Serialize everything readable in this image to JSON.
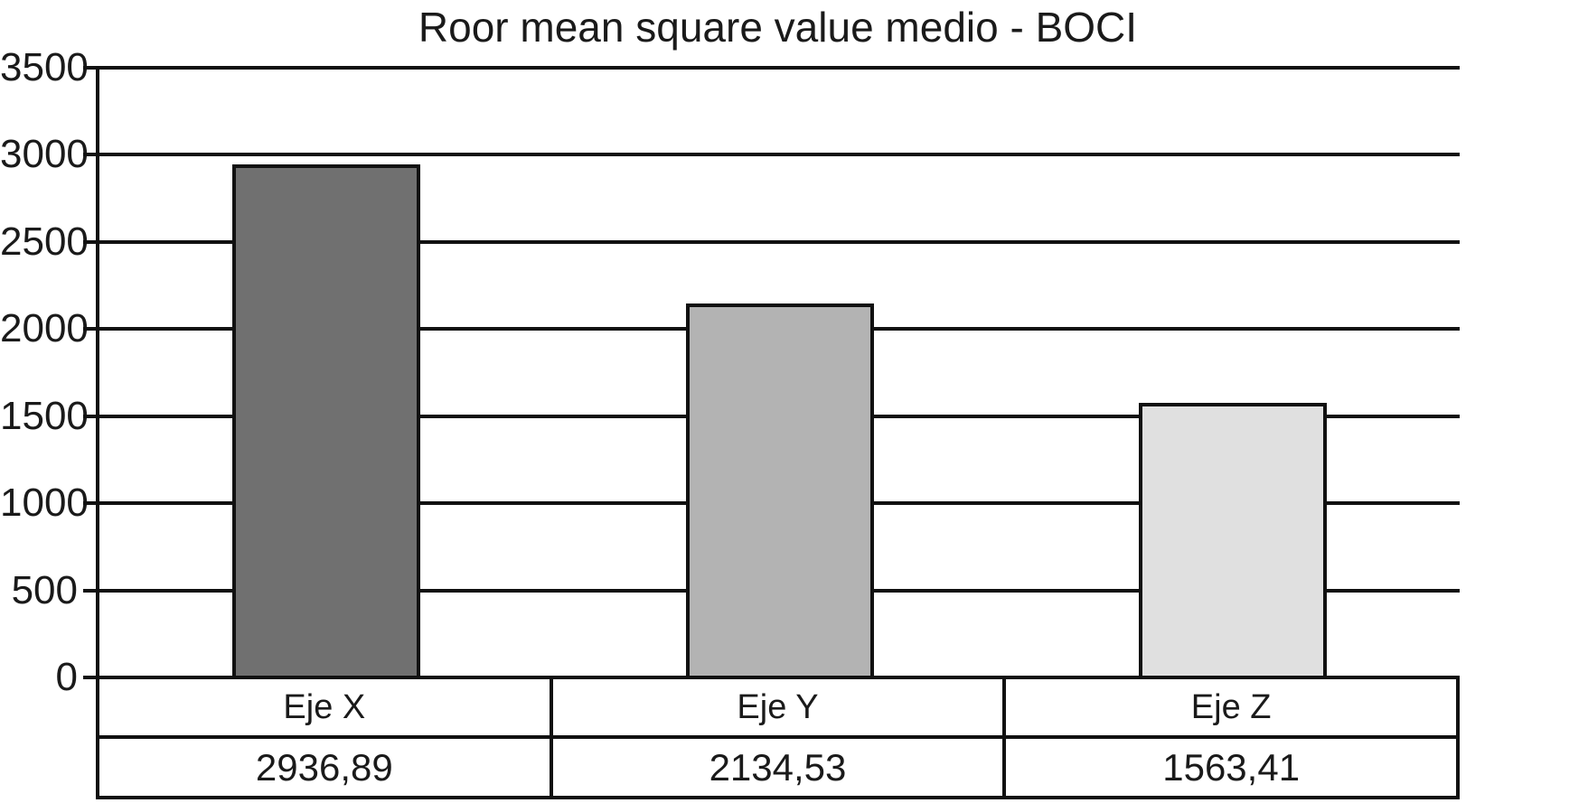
{
  "chart_data": {
    "type": "bar",
    "title": "Roor mean square value medio - BOCI",
    "categories": [
      "Eje X",
      "Eje Y",
      "Eje Z"
    ],
    "values": [
      2936.89,
      2134.53,
      1563.41
    ],
    "values_display": [
      "2936,89",
      "2134,53",
      "1563,41"
    ],
    "xlabel": "",
    "ylabel": "",
    "ylim": [
      0,
      3500
    ],
    "ytick_step": 500,
    "ytick_labels": [
      "0",
      "500",
      "1000",
      "1500",
      "2000",
      "2500",
      "3000",
      "3500"
    ],
    "grid": "horizontal-only",
    "legend_position": "none",
    "bar_colors": [
      "#707070",
      "#b3b3b3",
      "#e0e0e0"
    ],
    "axis_color": "#111111",
    "background_color": "#ffffff",
    "data_table": {
      "rows": [
        {
          "name": "category",
          "cells": [
            "Eje X",
            "Eje Y",
            "Eje Z"
          ]
        },
        {
          "name": "value",
          "cells": [
            "2936,89",
            "2134,53",
            "1563,41"
          ]
        }
      ]
    }
  }
}
